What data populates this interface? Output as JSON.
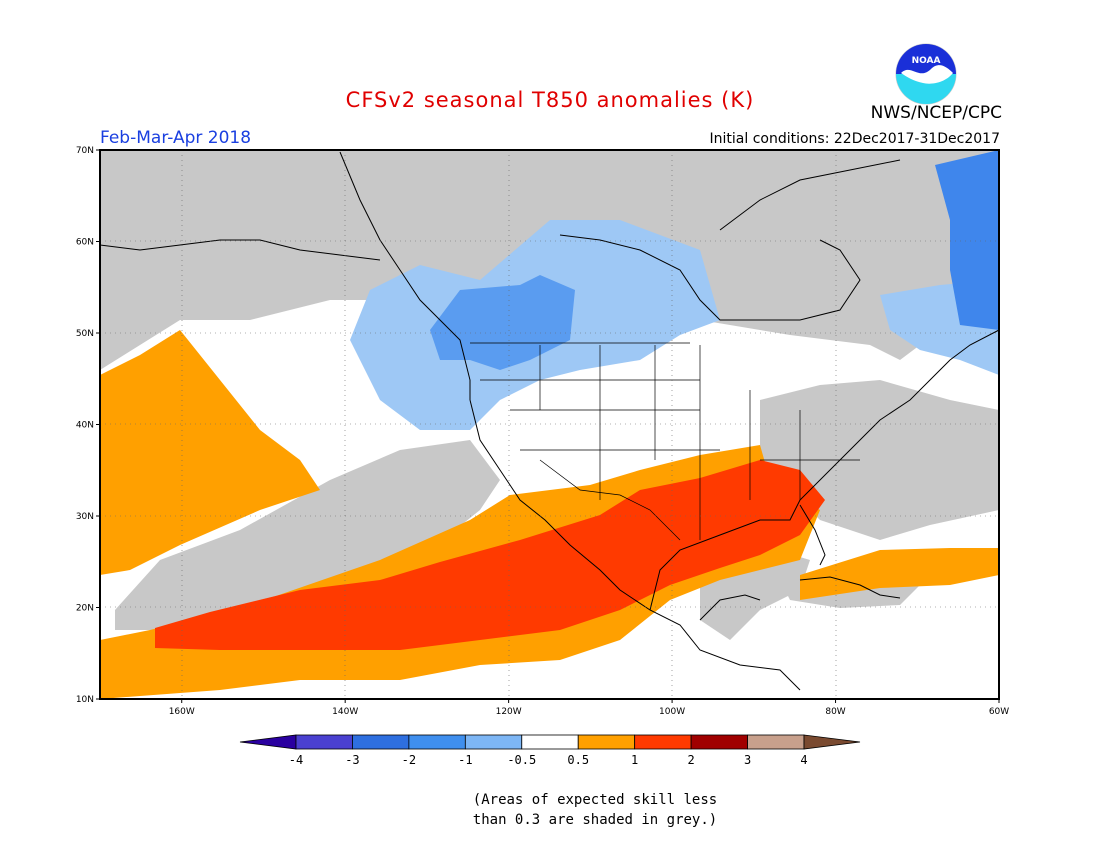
{
  "header": {
    "title": "CFSv2 seasonal T850 anomalies (K)",
    "period": "Feb-Mar-Apr 2018",
    "initial_conditions": "Initial conditions: 22Dec2017-31Dec2017",
    "organization": "NWS/NCEP/CPC",
    "logo_text": "NOAA"
  },
  "map": {
    "lat_labels": [
      "70N",
      "60N",
      "50N",
      "40N",
      "30N",
      "20N",
      "10N"
    ],
    "lon_labels": [
      "160W",
      "140W",
      "120W",
      "100W",
      "80W",
      "60W"
    ],
    "lat_range": [
      10,
      70
    ],
    "lon_range": [
      -170,
      -60
    ]
  },
  "legend": {
    "ticks": [
      "-4",
      "-3",
      "-2",
      "-1",
      "-0.5",
      "0.5",
      "1",
      "2",
      "3",
      "4"
    ],
    "colors": [
      "#2a00a0",
      "#4a40d0",
      "#2e6fe0",
      "#3f8fee",
      "#7db6f5",
      "#ffffff",
      "#ffa000",
      "#ff3a00",
      "#a00000",
      "#c8a08c",
      "#7a4a30"
    ]
  },
  "note": {
    "line1": "(Areas of expected skill less",
    "line2": "than 0.3 are shaded in grey.)"
  },
  "colors": {
    "grey": "#c8c8c8",
    "blue_light": "#9ec8f5",
    "blue_mid": "#5a9cf0",
    "blue_dark": "#3f86ec",
    "orange": "#ffa000",
    "red": "#ff3a00"
  }
}
